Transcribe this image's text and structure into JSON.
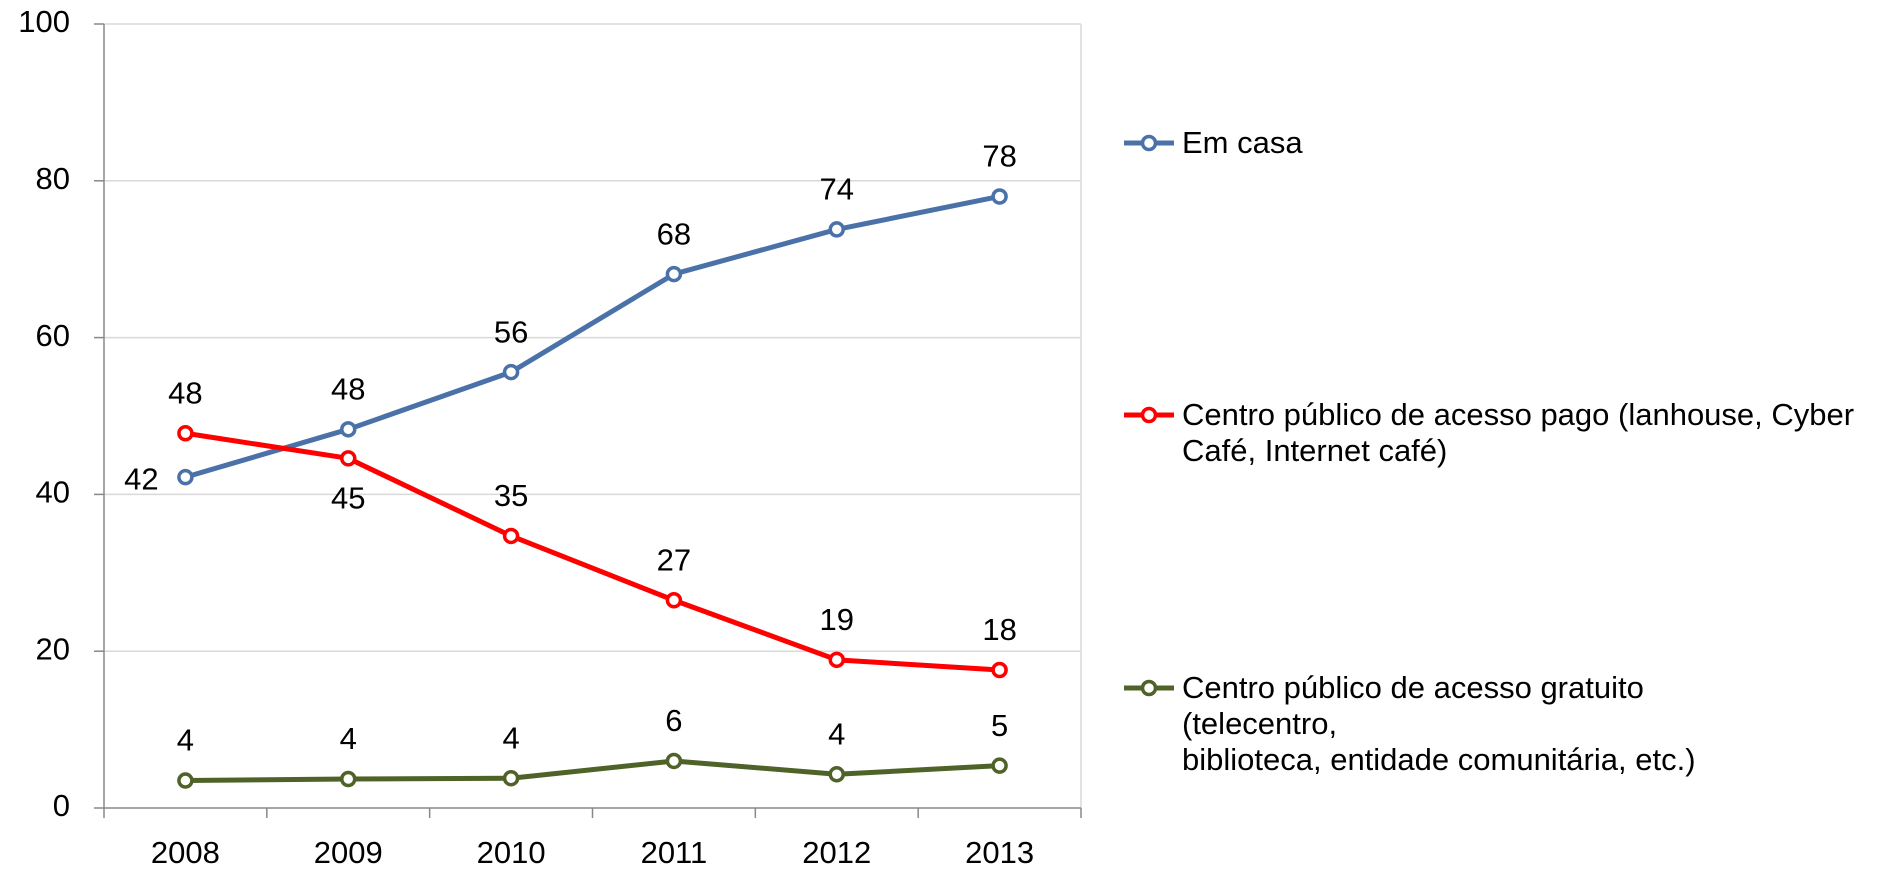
{
  "chart_data": {
    "type": "line",
    "categories": [
      "2008",
      "2009",
      "2010",
      "2011",
      "2012",
      "2013"
    ],
    "series": [
      {
        "name": "Em casa",
        "color": "#4a72a8",
        "values": [
          42.2,
          48.3,
          55.6,
          68.1,
          73.8,
          78.0
        ],
        "value_labels": [
          "42",
          "48",
          "56",
          "68",
          "74",
          "78"
        ]
      },
      {
        "name": "Centro público de acesso pago (lanhouse, Cyber Café, Internet café)",
        "color": "#ff0000",
        "values": [
          47.8,
          44.6,
          34.7,
          26.5,
          18.9,
          17.6
        ],
        "value_labels": [
          "48",
          "45",
          "35",
          "27",
          "19",
          "18"
        ]
      },
      {
        "name": "Centro público de acesso gratuito\n(telecentro,\nbiblioteca, entidade comunitária, etc.)",
        "color": "#4f6228",
        "values": [
          3.5,
          3.7,
          3.8,
          6.0,
          4.3,
          5.4
        ],
        "value_labels": [
          "4",
          "4",
          "4",
          "6",
          "4",
          "5"
        ]
      }
    ],
    "ylim": [
      0,
      100
    ],
    "yticks": [
      0,
      20,
      40,
      60,
      80,
      100
    ],
    "grid": true,
    "legend": "right"
  }
}
